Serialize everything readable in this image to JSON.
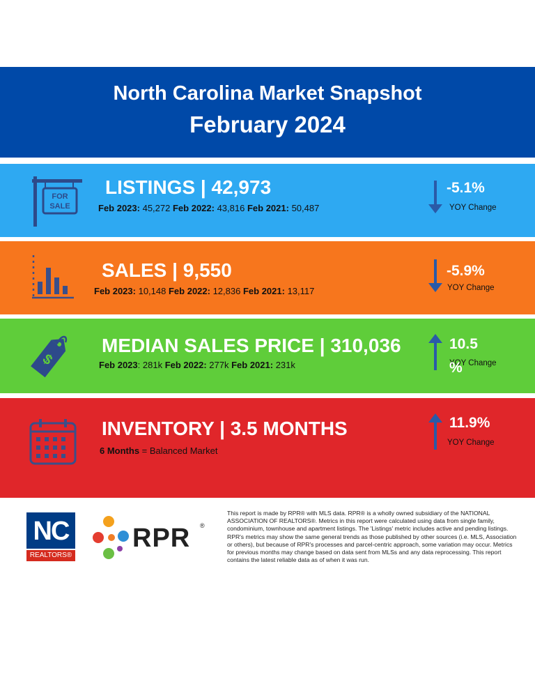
{
  "header": {
    "title": "North Carolina Market Snapshot",
    "subtitle": "February 2024"
  },
  "listings": {
    "title": "LISTINGS | 42,973",
    "history": [
      {
        "label": "Feb 2023:",
        "value": " 45,272 "
      },
      {
        "label": "Feb 2022:",
        "value": " 43,816  "
      },
      {
        "label": "Feb 2021:",
        "value": " 50,487"
      }
    ],
    "change": "-5.1%",
    "change_label": "YOY Change",
    "direction": "down",
    "icon_text": "FOR SALE"
  },
  "sales": {
    "title": "SALES | 9,550",
    "history": [
      {
        "label": "Feb 2023:",
        "value": " 10,148 "
      },
      {
        "label": "Feb 2022:",
        "value": " 12,836  "
      },
      {
        "label": "Feb 2021:",
        "value": " 13,117"
      }
    ],
    "change": "-5.9%",
    "change_label": "YOY Change",
    "direction": "down"
  },
  "price": {
    "title": "MEDIAN SALES PRICE | 310,036",
    "history": [
      {
        "label": "Feb 2023",
        "value": ": 281k "
      },
      {
        "label": "Feb 2022:",
        "value": " 277k  "
      },
      {
        "label": "Feb 2021:",
        "value": " 231k"
      }
    ],
    "change": "10.5",
    "change_wrap": "%",
    "change_label": "YOY Change",
    "direction": "up"
  },
  "inventory": {
    "title": "INVENTORY | 3.5 MONTHS",
    "note_bold": "6 Months",
    "note_rest": " = Balanced Market",
    "change": "11.9%",
    "change_label": "YOY Change",
    "direction": "up"
  },
  "footer": {
    "disclaimer": "This report is made by RPR® with MLS data. RPR® is a wholly owned subsidiary of the NATIONAL ASSOCIATION OF REALTORS®. Metrics in this report were calculated using data from single family, condominium, townhouse and apartment listings. The 'Listings' metric includes active and pending listings. RPR's metrics may show the same general trends as those published by other sources (i.e. MLS, Association or others), but because of RPR's processes and parcel-centric approach, some variation may occur. Metrics for previous months may change based on data sent from MLSs and any data reprocessing. This report contains the latest reliable data as of when it was run.",
    "nc_logo_top": "NC",
    "nc_logo_bottom": "REALTORS®",
    "rpr_logo": "RPR",
    "rpr_reg": "®"
  },
  "colors": {
    "header": "#0049a8",
    "listings": "#2ea9f2",
    "sales": "#f7761d",
    "price": "#5fcd3a",
    "inventory": "#e0262a",
    "arrow": "#2a5aa8"
  }
}
